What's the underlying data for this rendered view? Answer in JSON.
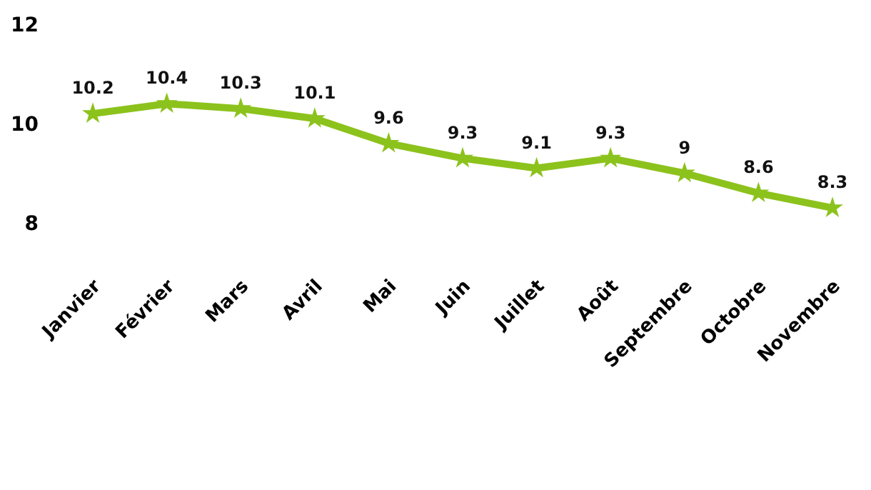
{
  "chart_data": {
    "type": "line",
    "categories": [
      "Janvier",
      "Février",
      "Mars",
      "Avril",
      "Mai",
      "Juin",
      "Juillet",
      "Août",
      "Septembre",
      "Octobre",
      "Novembre"
    ],
    "series": [
      {
        "color": "#8cc21c",
        "values": [
          10.2,
          10.4,
          10.3,
          10.1,
          9.6,
          9.3,
          9.1,
          9.3,
          9,
          8.6,
          8.3
        ]
      }
    ],
    "ylim": [
      8,
      12
    ],
    "yticks": [
      8,
      10,
      12
    ],
    "grid": false,
    "marker": "star",
    "line_style": "solid",
    "data_labels": true
  }
}
